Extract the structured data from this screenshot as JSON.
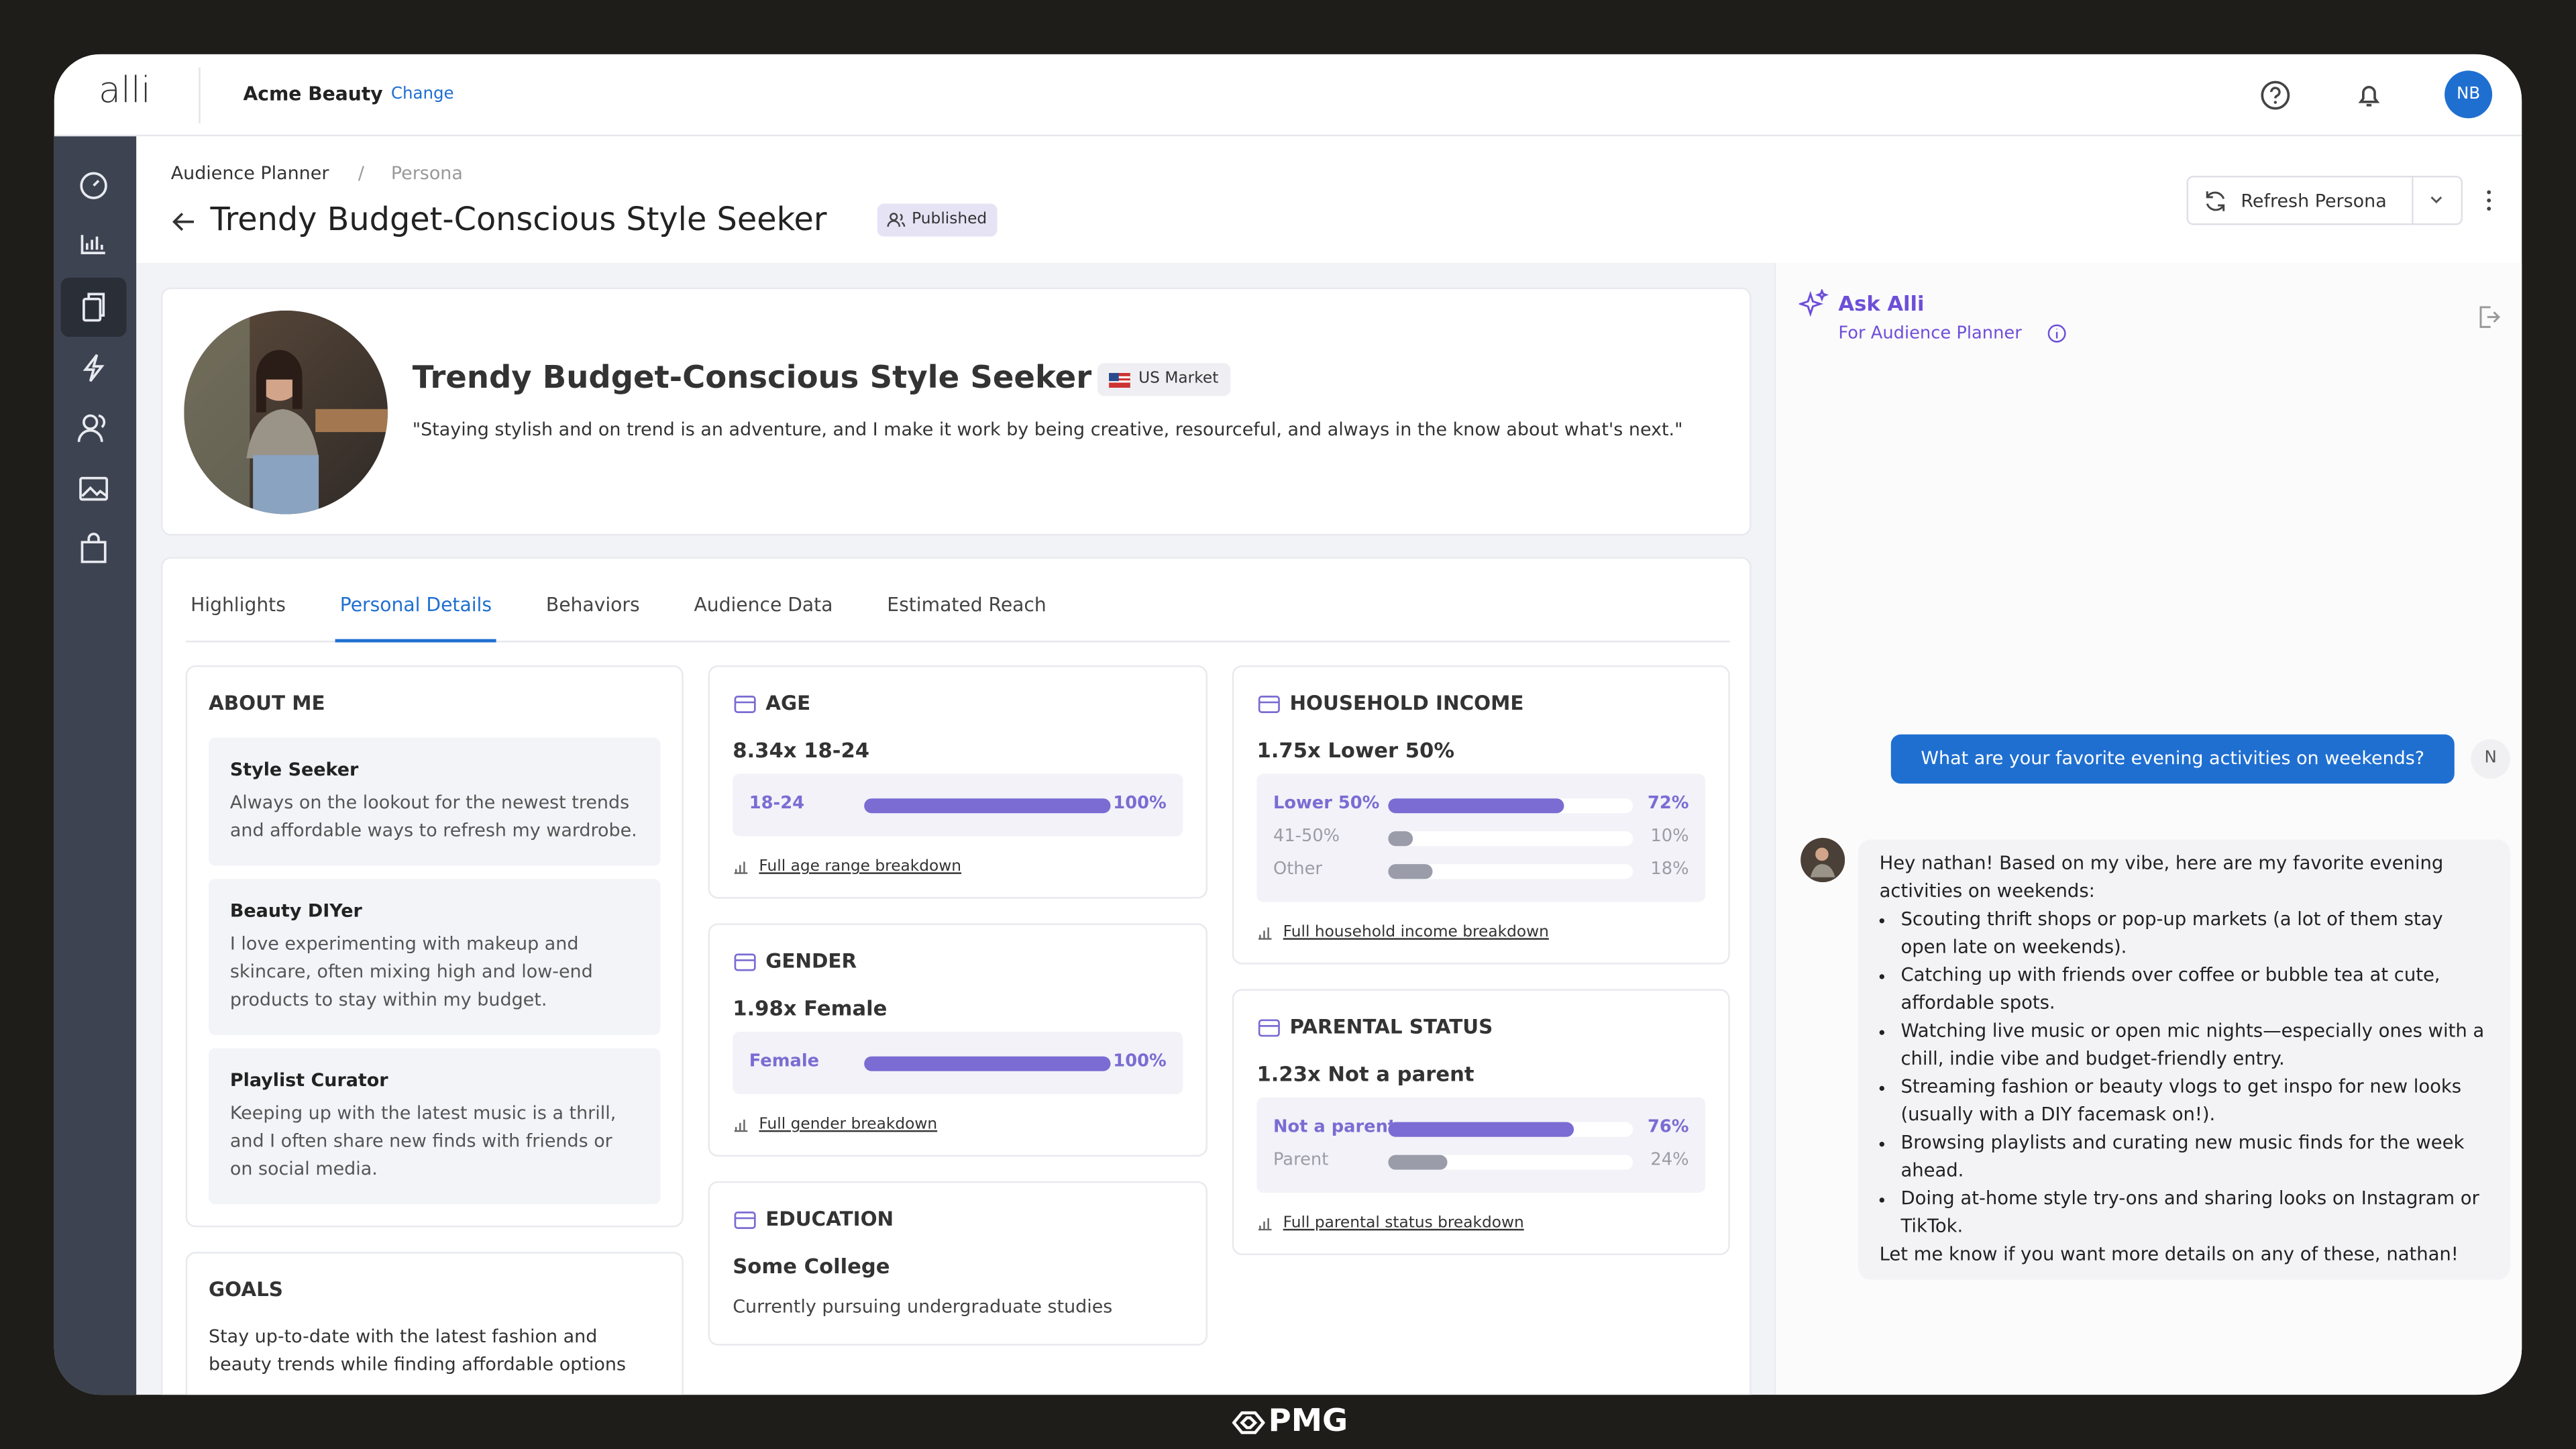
{
  "topbar": {
    "logo": "alli",
    "account": "Acme Beauty",
    "change": "Change",
    "avatar": "NB"
  },
  "breadcrumb": [
    "Audience Planner",
    "Persona"
  ],
  "header": {
    "title": "Trendy Budget-Conscious Style Seeker",
    "status": "Published",
    "refresh": "Refresh Persona"
  },
  "profile": {
    "name": "Trendy Budget-Conscious Style Seeker",
    "market": "US Market",
    "quote": "\"Staying stylish and on trend is an adventure, and I make it work by being creative, resourceful, and always in the know about what's next.\""
  },
  "tabs": {
    "items": [
      "Highlights",
      "Personal Details",
      "Behaviors",
      "Audience Data",
      "Estimated Reach"
    ],
    "active": 1
  },
  "about_me": {
    "title": "ABOUT ME",
    "items": [
      {
        "title": "Style Seeker",
        "text": "Always on the lookout for the newest trends and affordable ways to refresh my wardrobe."
      },
      {
        "title": "Beauty DIYer",
        "text": "I love experimenting with makeup and skincare, often mixing high and low-end products to stay within my budget."
      },
      {
        "title": "Playlist Curator",
        "text": "Keeping up with the latest music is a thrill, and I often share new finds with friends or on social media."
      }
    ]
  },
  "goals": {
    "title": "GOALS",
    "text": "Stay up-to-date with the latest fashion and beauty trends while finding affordable options"
  },
  "stats": [
    {
      "title": "AGE",
      "headline": "8.34x 18-24",
      "rows": [
        {
          "label": "18-24",
          "value": 100,
          "value_label": "100%",
          "highlight": true
        }
      ],
      "link": "Full age range breakdown"
    },
    {
      "title": "GENDER",
      "headline": "1.98x Female",
      "rows": [
        {
          "label": "Female",
          "value": 100,
          "value_label": "100%",
          "highlight": true
        }
      ],
      "link": "Full gender breakdown"
    },
    {
      "title": "EDUCATION",
      "headline": "Some College",
      "text": "Currently pursuing undergraduate studies"
    },
    {
      "title": "HOUSEHOLD INCOME",
      "headline": "1.75x Lower 50%",
      "rows": [
        {
          "label": "Lower 50%",
          "value": 72,
          "value_label": "72%",
          "highlight": true
        },
        {
          "label": "41-50%",
          "value": 10,
          "value_label": "10%",
          "highlight": false
        },
        {
          "label": "Other",
          "value": 18,
          "value_label": "18%",
          "highlight": false
        }
      ],
      "link": "Full household income breakdown"
    },
    {
      "title": "PARENTAL STATUS",
      "headline": "1.23x Not a parent",
      "rows": [
        {
          "label": "Not a parent",
          "value": 76,
          "value_label": "76%",
          "highlight": true
        },
        {
          "label": "Parent",
          "value": 24,
          "value_label": "24%",
          "highlight": false
        }
      ],
      "link": "Full parental status breakdown"
    }
  ],
  "chat": {
    "title": "Ask Alli",
    "subtitle": "For Audience Planner",
    "user": {
      "text": "What are your favorite evening activities on weekends?",
      "initial": "N"
    },
    "reply": {
      "intro": "Hey nathan! Based on my vibe, here are my favorite evening activities on weekends:",
      "bullets": [
        "Scouting thrift shops or pop-up markets (a lot of them stay open late on weekends).",
        "Catching up with friends over coffee or bubble tea at cute, affordable spots.",
        "Watching live music or open mic nights—especially ones with a chill, indie vibe and budget-friendly entry.",
        "Streaming fashion or beauty vlogs to get inspo for new looks (usually with a DIY facemask on!).",
        "Browsing playlists and curating new music finds for the week ahead.",
        "Doing at-home style try-ons and sharing looks on Instagram or TikTok."
      ],
      "outro": "Let me know if you want more details on any of these, nathan!"
    }
  },
  "footer": {
    "brand": "PMG"
  }
}
